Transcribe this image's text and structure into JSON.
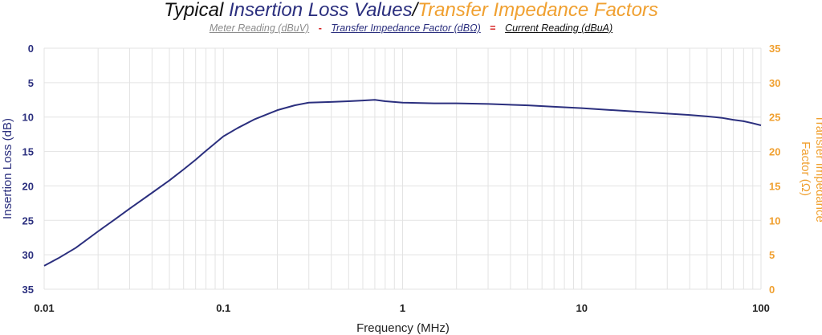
{
  "colors": {
    "title_dark": "#111111",
    "primary": "#2b2f7e",
    "accent": "#f0a030",
    "meter_gray": "#8c8c8c",
    "operator_red": "#d62020",
    "grid": "#e3e3e3"
  },
  "header": {
    "title": {
      "part1": "Typical",
      "part2": "Insertion Loss Values",
      "separator": "/",
      "part3": "Transfer Impedance Factors"
    },
    "subtitle": {
      "meter": "Meter Reading (dBuV)",
      "minus": "-",
      "factor": "Transfer Impedance Factor (dBΩ)",
      "equals": "=",
      "current": "Current Reading (dBuA)"
    }
  },
  "chart_data": {
    "type": "line",
    "x_scale": "log",
    "xlim": [
      0.01,
      100
    ],
    "ylim": [
      0,
      35
    ],
    "y_inverted": true,
    "y2lim": [
      0,
      35
    ],
    "grid": true,
    "xlabel": "Frequency (MHz)",
    "ylabel": "Insertion Loss (dB)",
    "y2label_lines": [
      "Transfer Impedance",
      "Factor (Ω)"
    ],
    "x_ticks": [
      "0.01",
      "0.1",
      "1",
      "10",
      "100"
    ],
    "x_tick_values": [
      0.01,
      0.1,
      1,
      10,
      100
    ],
    "y_ticks": [
      "0",
      "5",
      "10",
      "15",
      "20",
      "25",
      "30",
      "35"
    ],
    "y_tick_values": [
      0,
      5,
      10,
      15,
      20,
      25,
      30,
      35
    ],
    "y2_ticks": [
      "35",
      "30",
      "25",
      "20",
      "15",
      "10",
      "5",
      "0"
    ],
    "series": [
      {
        "x": [
          0.01,
          0.012,
          0.015,
          0.02,
          0.025,
          0.03,
          0.04,
          0.05,
          0.06,
          0.07,
          0.08,
          0.09,
          0.1,
          0.12,
          0.15,
          0.2,
          0.25,
          0.3,
          0.4,
          0.5,
          0.6,
          0.7,
          0.8,
          1,
          1.5,
          2,
          3,
          5,
          7,
          10,
          15,
          20,
          30,
          40,
          50,
          60,
          70,
          80,
          90,
          100
        ],
        "y": [
          31.6,
          30.5,
          29.0,
          26.6,
          24.8,
          23.3,
          21.0,
          19.2,
          17.6,
          16.2,
          14.9,
          13.8,
          12.8,
          11.6,
          10.3,
          9.0,
          8.3,
          7.9,
          7.8,
          7.7,
          7.6,
          7.5,
          7.7,
          7.9,
          8.0,
          8.0,
          8.1,
          8.3,
          8.5,
          8.7,
          9.0,
          9.2,
          9.5,
          9.7,
          9.9,
          10.1,
          10.4,
          10.6,
          10.9,
          11.2
        ]
      }
    ]
  }
}
